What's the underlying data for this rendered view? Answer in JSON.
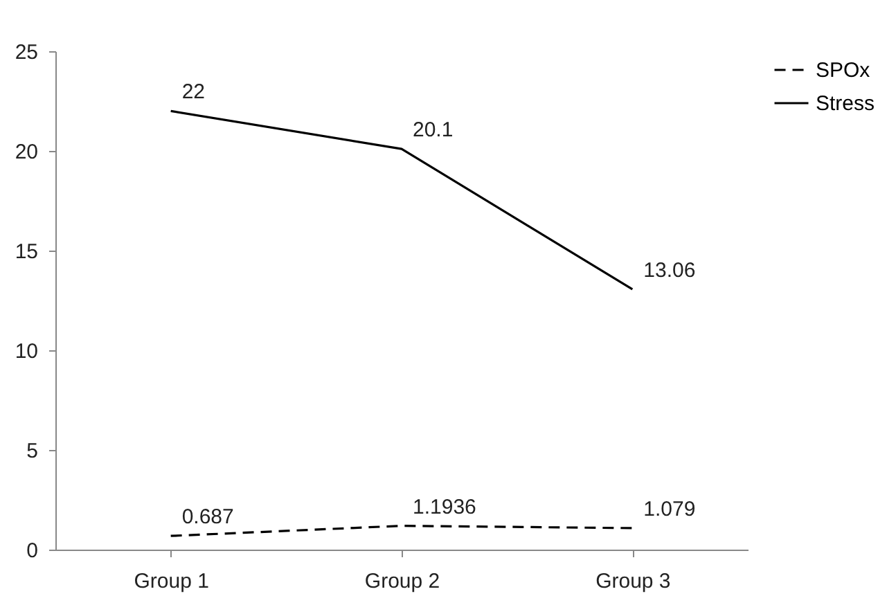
{
  "chart_data": {
    "type": "line",
    "categories": [
      "Group 1",
      "Group 2",
      "Group 3"
    ],
    "series": [
      {
        "name": "SPOx",
        "color": "#000000",
        "line_style": "dashed",
        "values": [
          0.687,
          1.1936,
          1.079
        ]
      },
      {
        "name": "Stress",
        "color": "#000000",
        "line_style": "solid",
        "values": [
          22,
          20.1,
          13.06
        ]
      }
    ],
    "ylim": [
      0,
      25
    ],
    "yticks": [
      0,
      5,
      10,
      15,
      20,
      25
    ],
    "grid": false,
    "legend": "right",
    "data_labels": true,
    "marker": "none"
  }
}
